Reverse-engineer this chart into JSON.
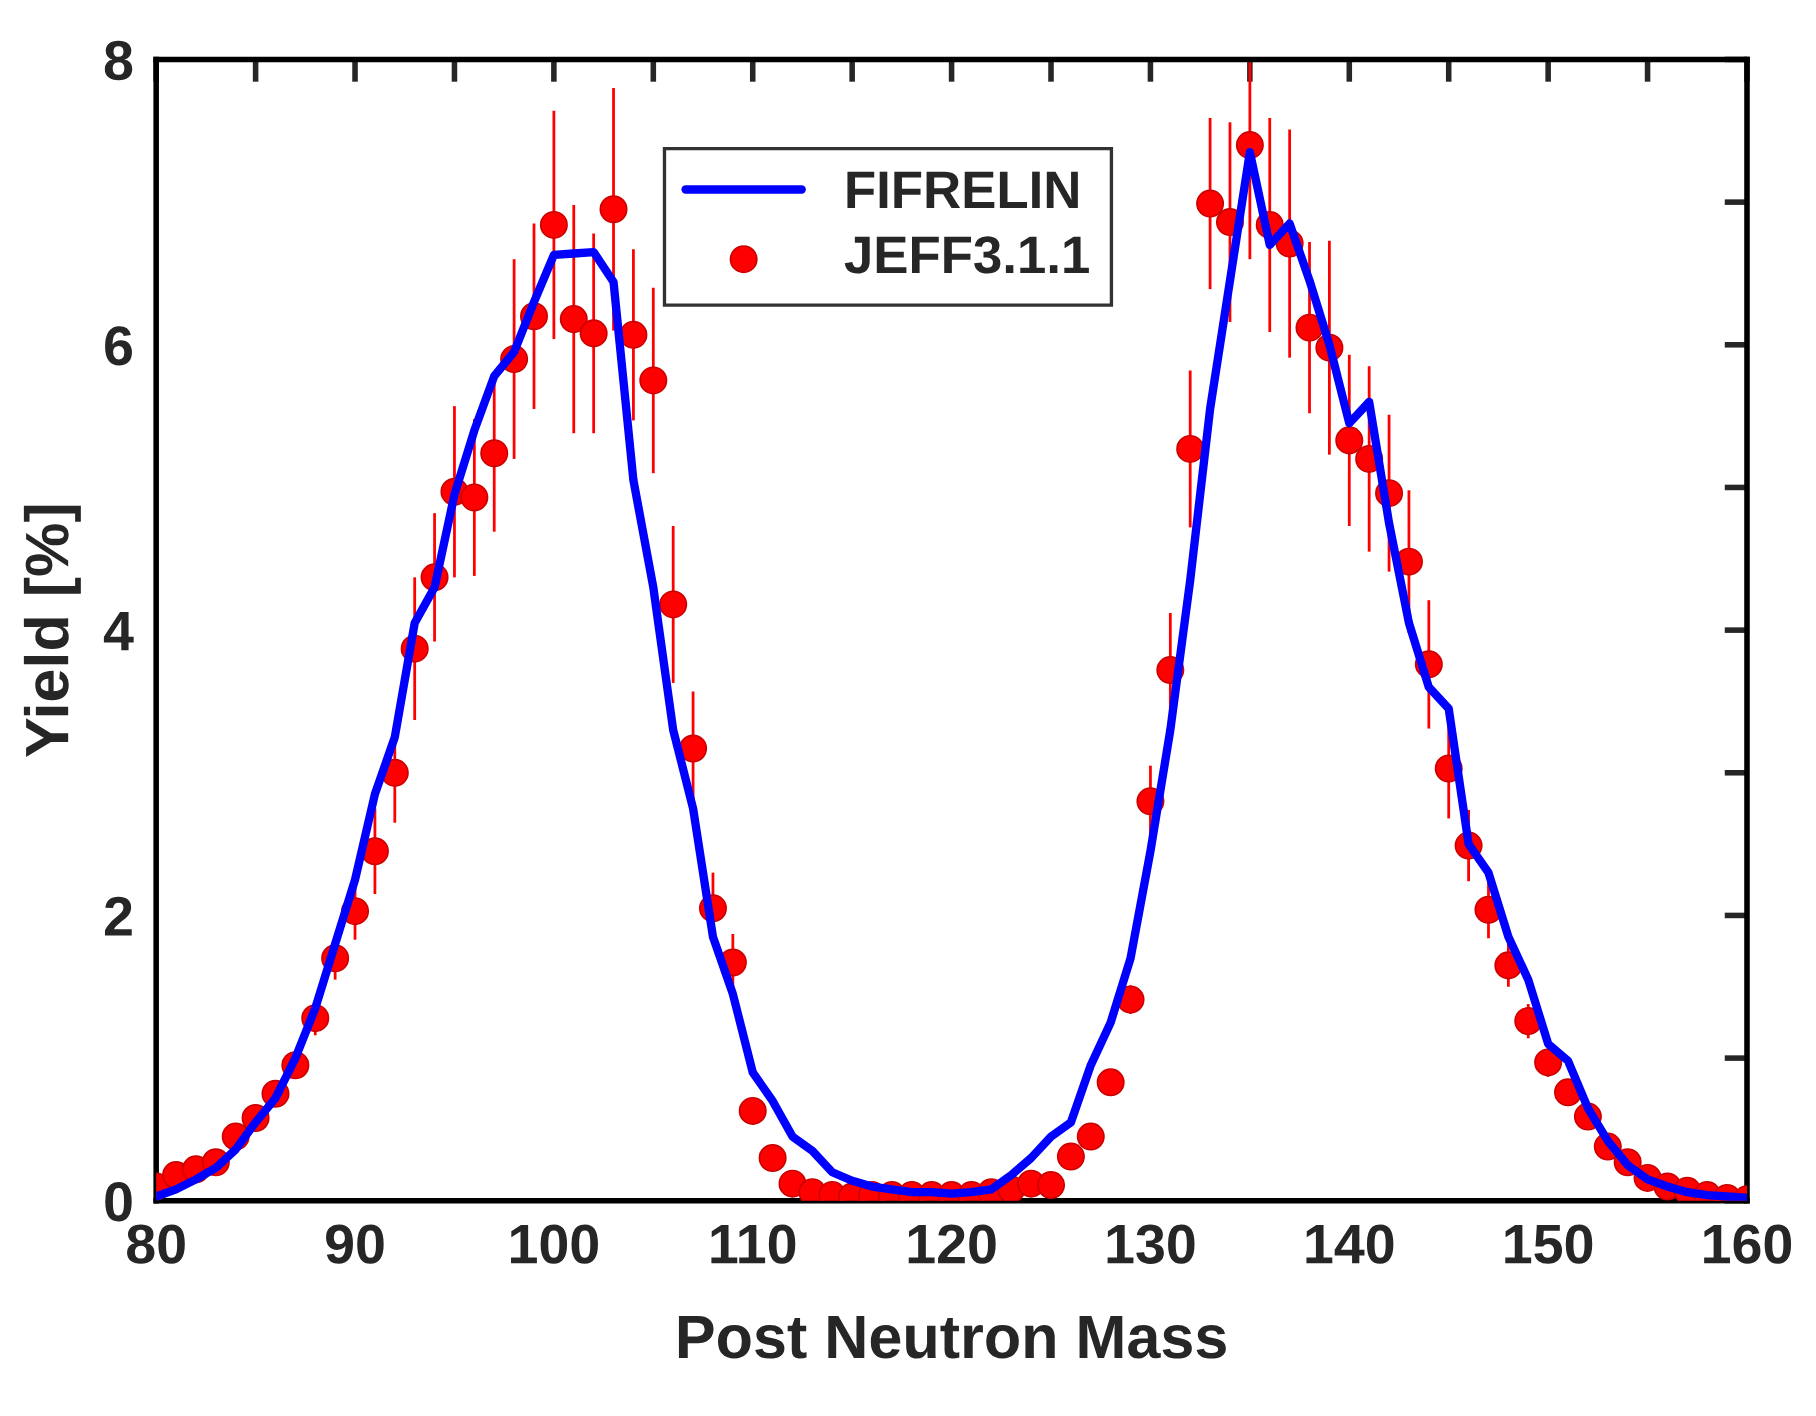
{
  "chart_data": {
    "type": "line",
    "xlabel": "Post Neutron Mass",
    "ylabel": "Yield [%]",
    "xlim": [
      80,
      160
    ],
    "ylim": [
      0,
      8
    ],
    "xticks": [
      80,
      {
        "value": 85,
        "label": null
      },
      90,
      {
        "value": 95,
        "label": null
      },
      100,
      {
        "value": 105,
        "label": null
      },
      110,
      {
        "value": 115,
        "label": null
      },
      120,
      {
        "value": 125,
        "label": null
      },
      130,
      {
        "value": 135,
        "label": null
      },
      140,
      {
        "value": 145,
        "label": null
      },
      150,
      {
        "value": 155,
        "label": null
      },
      160
    ],
    "yticks": [
      0,
      {
        "value": 1,
        "label": null
      },
      2,
      {
        "value": 3,
        "label": null
      },
      4,
      {
        "value": 5,
        "label": null
      },
      6,
      {
        "value": 7,
        "label": null
      },
      8
    ],
    "grid": false,
    "legend": "top",
    "x": [
      80,
      81,
      82,
      83,
      84,
      85,
      86,
      87,
      88,
      89,
      90,
      91,
      92,
      93,
      94,
      95,
      96,
      97,
      98,
      99,
      100,
      101,
      102,
      103,
      104,
      105,
      106,
      107,
      108,
      109,
      110,
      111,
      112,
      113,
      114,
      115,
      116,
      117,
      118,
      119,
      120,
      121,
      122,
      123,
      124,
      125,
      126,
      127,
      128,
      129,
      130,
      131,
      132,
      133,
      134,
      135,
      136,
      137,
      138,
      139,
      140,
      141,
      142,
      143,
      144,
      145,
      146,
      147,
      148,
      149,
      150,
      151,
      152,
      153,
      154,
      155,
      156,
      157,
      158,
      159,
      160
    ],
    "series": [
      {
        "name": "FIFRELIN",
        "color": "#0000ff",
        "marker": "none",
        "line_style": "solid",
        "values": [
          0.03,
          0.08,
          0.15,
          0.23,
          0.36,
          0.55,
          0.72,
          1.0,
          1.35,
          1.8,
          2.25,
          2.85,
          3.25,
          4.05,
          4.3,
          4.95,
          5.4,
          5.78,
          5.95,
          6.3,
          6.63,
          6.64,
          6.65,
          6.44,
          5.05,
          4.3,
          3.3,
          2.75,
          1.85,
          1.45,
          0.9,
          0.7,
          0.45,
          0.35,
          0.2,
          0.14,
          0.1,
          0.08,
          0.06,
          0.06,
          0.05,
          0.06,
          0.08,
          0.18,
          0.3,
          0.45,
          0.55,
          0.95,
          1.25,
          1.7,
          2.45,
          3.3,
          4.35,
          5.55,
          6.45,
          7.35,
          6.7,
          6.85,
          6.45,
          6.0,
          5.45,
          5.6,
          4.75,
          4.05,
          3.6,
          3.45,
          2.5,
          2.3,
          1.85,
          1.55,
          1.1,
          0.98,
          0.65,
          0.42,
          0.25,
          0.15,
          0.1,
          0.06,
          0.04,
          0.03,
          0.02
        ]
      },
      {
        "name": "JEFF3.1.1",
        "type": "scatter",
        "color": "#ff0000",
        "marker": "circle",
        "values": [
          0.1,
          0.18,
          0.22,
          0.27,
          0.45,
          0.58,
          0.75,
          0.95,
          1.28,
          1.7,
          2.03,
          2.45,
          3.0,
          3.87,
          4.37,
          4.97,
          4.93,
          5.24,
          5.9,
          6.2,
          6.84,
          6.18,
          6.08,
          6.95,
          6.07,
          5.75,
          4.18,
          3.17,
          2.05,
          1.67,
          0.63,
          0.3,
          0.12,
          0.06,
          0.04,
          0.03,
          0.04,
          0.04,
          0.04,
          0.04,
          0.04,
          0.04,
          0.06,
          0.08,
          0.12,
          0.11,
          0.31,
          0.45,
          0.83,
          1.41,
          2.8,
          3.72,
          5.27,
          6.99,
          6.86,
          7.4,
          6.84,
          6.71,
          6.12,
          5.98,
          5.33,
          5.2,
          4.96,
          4.48,
          3.76,
          3.03,
          2.49,
          2.04,
          1.65,
          1.26,
          0.97,
          0.76,
          0.59,
          0.38,
          0.27,
          0.16,
          0.1,
          0.07,
          0.04,
          0.02,
          0.01
        ],
        "errors": [
          null,
          null,
          null,
          null,
          null,
          null,
          0.05,
          0.08,
          0.12,
          0.15,
          0.2,
          0.3,
          0.35,
          0.5,
          0.45,
          0.6,
          0.55,
          0.55,
          0.7,
          0.65,
          0.8,
          0.8,
          0.7,
          0.85,
          0.6,
          0.65,
          0.55,
          0.4,
          0.25,
          0.2,
          null,
          null,
          null,
          null,
          null,
          null,
          null,
          null,
          null,
          null,
          null,
          null,
          null,
          null,
          null,
          null,
          null,
          null,
          0.05,
          0.1,
          0.25,
          0.4,
          0.55,
          0.6,
          0.7,
          0.8,
          0.75,
          0.8,
          0.6,
          0.75,
          0.6,
          0.65,
          0.55,
          0.5,
          0.45,
          0.35,
          0.25,
          0.2,
          0.15,
          0.12,
          0.1,
          null,
          null,
          null,
          null,
          null,
          null,
          null,
          null,
          null,
          null
        ]
      }
    ]
  }
}
